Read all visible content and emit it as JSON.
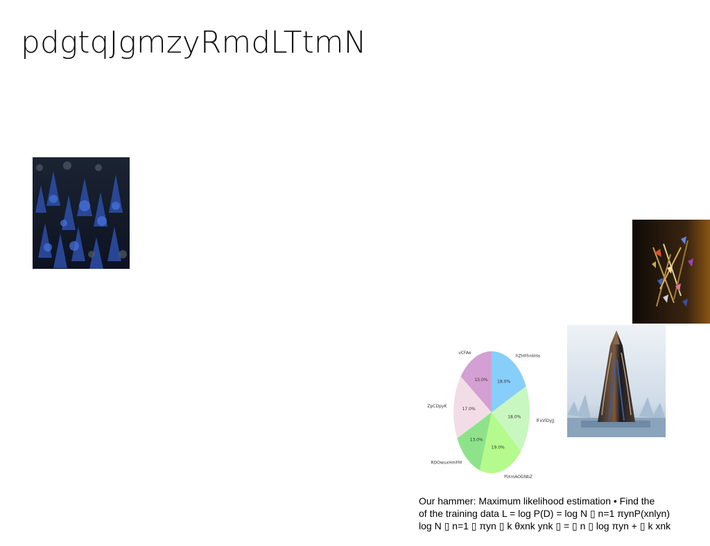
{
  "slide": {
    "title": "pdgtqJgmzyRmdLTtmN",
    "caption_lines": [
      "Our hammer: Maximum likelihood estimation • Find the",
      "of the training data L = log P(D) = log N ▯ n=1 πynP(xnlyn)",
      "log N ▯ n=1 ▯ πyn ▯ k θxnk ynk ▯ = ▯ n ▯ log πyn + ▯ k xnk"
    ]
  },
  "images": {
    "forest": {
      "icon": "forest-photo"
    },
    "abstract": {
      "icon": "abstract-art-photo"
    },
    "rocket": {
      "icon": "rocket-sculpture-photo"
    }
  },
  "chart_data": {
    "type": "pie",
    "title": "",
    "categories": [
      "hZHFhnkHa",
      "lFxVlDyjJ",
      "PiXmAOGNbZ",
      "RDOwuxHmFM",
      "ZpCDpyK",
      "vCFAe"
    ],
    "values": [
      18.0,
      18.0,
      19.0,
      13.0,
      17.0,
      15.0
    ],
    "labels": [
      "18.0%",
      "18.0%",
      "19.0%",
      "13.0%",
      "17.0%",
      "15.0%"
    ],
    "colors": [
      "#87cefa",
      "#c9f7c0",
      "#b5fa8c",
      "#8ee38a",
      "#f2dde6",
      "#d49fd2"
    ],
    "start_angle_deg": 90,
    "direction": "clockwise"
  }
}
